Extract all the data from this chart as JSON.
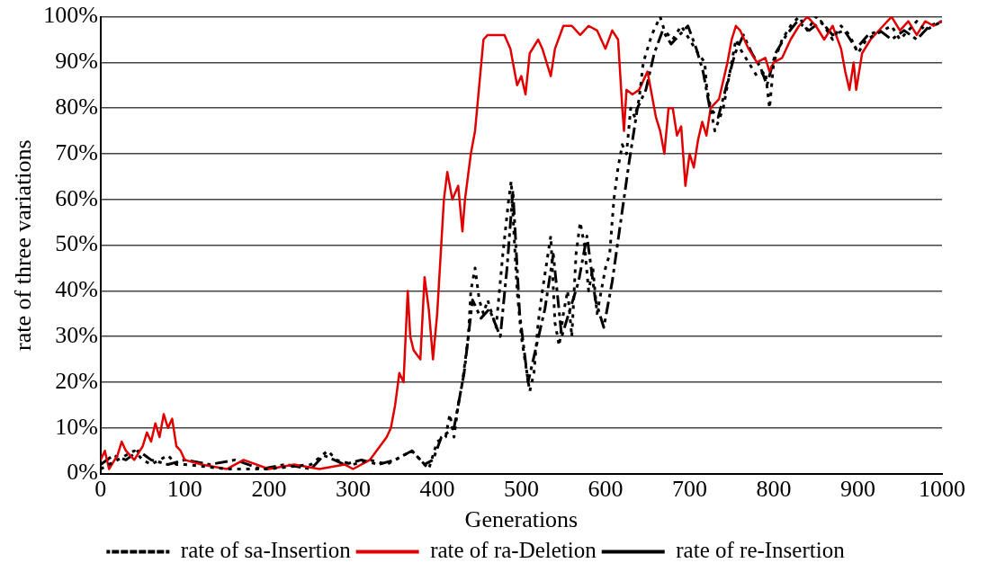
{
  "chart_data": {
    "type": "line",
    "xlabel": "Generations",
    "ylabel": "rate of three variations",
    "xlim": [
      0,
      1000
    ],
    "xticks": [
      0,
      100,
      200,
      300,
      400,
      500,
      600,
      700,
      800,
      900,
      1000
    ],
    "ylim": [
      0,
      100
    ],
    "yticks": [
      {
        "value": 0,
        "label": "0%"
      },
      {
        "value": 10,
        "label": "10%"
      },
      {
        "value": 20,
        "label": "20%"
      },
      {
        "value": 30,
        "label": "30%"
      },
      {
        "value": 40,
        "label": "40%"
      },
      {
        "value": 50,
        "label": "50%"
      },
      {
        "value": 60,
        "label": "60%"
      },
      {
        "value": 70,
        "label": "70%"
      },
      {
        "value": 80,
        "label": "80%"
      },
      {
        "value": 90,
        "label": "90%"
      },
      {
        "value": 100,
        "label": "100%"
      }
    ],
    "grid": "y",
    "legend": "bottom",
    "marker": "none",
    "series": [
      {
        "name": "rate of sa-Insertion",
        "color": "#000000",
        "line_style": "dotted",
        "x": [
          0,
          10,
          20,
          30,
          40,
          50,
          60,
          70,
          80,
          90,
          100,
          150,
          200,
          250,
          270,
          280,
          300,
          320,
          340,
          360,
          370,
          380,
          390,
          400,
          410,
          415,
          420,
          425,
          430,
          437,
          440,
          445,
          450,
          455,
          460,
          470,
          478,
          485,
          488,
          492,
          495,
          500,
          505,
          510,
          515,
          520,
          525,
          530,
          535,
          540,
          545,
          550,
          555,
          560,
          565,
          570,
          575,
          580,
          585,
          590,
          595,
          600,
          605,
          610,
          615,
          620,
          625,
          630,
          635,
          640,
          645,
          650,
          655,
          660,
          665,
          670,
          680,
          690,
          700,
          710,
          718,
          720,
          725,
          730,
          740,
          745,
          750,
          755,
          760,
          770,
          780,
          790,
          795,
          800,
          810,
          820,
          830,
          840,
          850,
          860,
          870,
          880,
          890,
          900,
          910,
          920,
          930,
          940,
          950,
          960,
          970,
          980,
          990,
          1000
        ],
        "values": [
          1,
          2,
          3,
          4,
          5,
          3,
          2,
          3,
          4,
          2,
          2,
          1,
          1,
          2,
          5,
          3,
          2,
          3,
          2,
          4,
          5,
          3,
          1,
          7,
          8,
          13,
          8,
          15,
          20,
          30,
          40,
          45,
          38,
          35,
          38,
          32,
          48,
          60,
          64,
          50,
          40,
          30,
          24,
          18,
          22,
          33,
          40,
          46,
          52,
          33,
          28,
          35,
          40,
          30,
          48,
          55,
          50,
          40,
          45,
          35,
          40,
          45,
          48,
          60,
          67,
          72,
          70,
          80,
          78,
          82,
          90,
          93,
          96,
          98,
          100,
          97,
          95,
          98,
          95,
          92,
          90,
          85,
          80,
          75,
          80,
          85,
          90,
          95,
          93,
          90,
          87,
          88,
          80,
          90,
          95,
          98,
          100,
          97,
          100,
          98,
          95,
          98,
          96,
          92,
          95,
          96,
          97,
          98,
          95,
          97,
          99,
          97,
          98,
          99
        ]
      },
      {
        "name": "rate of ra-Deletion",
        "color": "#e00000",
        "line_style": "solid",
        "x": [
          0,
          5,
          10,
          20,
          25,
          30,
          40,
          50,
          55,
          60,
          65,
          70,
          75,
          80,
          85,
          90,
          95,
          100,
          120,
          150,
          170,
          200,
          230,
          260,
          290,
          300,
          320,
          340,
          345,
          350,
          355,
          360,
          365,
          368,
          372,
          380,
          385,
          390,
          395,
          400,
          408,
          412,
          418,
          425,
          430,
          433,
          440,
          445,
          450,
          455,
          460,
          470,
          480,
          487,
          495,
          500,
          505,
          510,
          520,
          525,
          530,
          535,
          540,
          550,
          560,
          570,
          580,
          590,
          600,
          608,
          615,
          620,
          622,
          625,
          632,
          640,
          650,
          660,
          665,
          670,
          675,
          680,
          685,
          690,
          695,
          700,
          705,
          710,
          715,
          720,
          725,
          735,
          745,
          750,
          755,
          760,
          770,
          780,
          790,
          795,
          800,
          810,
          820,
          830,
          840,
          850,
          860,
          870,
          880,
          885,
          890,
          895,
          898,
          905,
          915,
          930,
          940,
          950,
          960,
          970,
          980,
          990,
          1000
        ],
        "values": [
          3,
          5,
          1,
          4,
          7,
          5,
          3,
          6,
          9,
          7,
          11,
          8,
          13,
          10,
          12,
          6,
          5,
          3,
          2,
          1,
          3,
          1,
          2,
          1,
          2,
          1,
          3,
          8,
          10,
          15,
          22,
          20,
          40,
          30,
          27,
          25,
          43,
          36,
          25,
          35,
          60,
          66,
          60,
          63,
          53,
          60,
          70,
          75,
          85,
          95,
          96,
          96,
          96,
          93,
          85,
          87,
          83,
          92,
          95,
          93,
          90,
          87,
          93,
          98,
          98,
          96,
          98,
          97,
          93,
          97,
          95,
          80,
          75,
          84,
          83,
          84,
          88,
          78,
          75,
          70,
          80,
          80,
          74,
          76,
          63,
          70,
          67,
          73,
          77,
          74,
          80,
          82,
          90,
          95,
          98,
          97,
          93,
          90,
          91,
          88,
          90,
          91,
          95,
          98,
          100,
          98,
          95,
          98,
          93,
          88,
          84,
          90,
          84,
          92,
          95,
          98,
          100,
          97,
          99,
          96,
          99,
          98,
          99
        ]
      },
      {
        "name": "rate of re-Insertion",
        "color": "#000000",
        "line_style": "dashed",
        "x": [
          0,
          15,
          30,
          45,
          60,
          80,
          100,
          130,
          160,
          190,
          220,
          250,
          265,
          290,
          310,
          330,
          350,
          370,
          385,
          395,
          405,
          420,
          432,
          442,
          452,
          462,
          475,
          483,
          490,
          498,
          508,
          518,
          528,
          538,
          548,
          558,
          568,
          578,
          588,
          598,
          608,
          618,
          628,
          638,
          648,
          658,
          668,
          678,
          688,
          698,
          708,
          716,
          724,
          734,
          744,
          754,
          764,
          774,
          784,
          792,
          802,
          815,
          828,
          842,
          856,
          870,
          884,
          898,
          912,
          926,
          940,
          955,
          970,
          985,
          1000
        ],
        "values": [
          2,
          4,
          3,
          5,
          3,
          2,
          3,
          2,
          3,
          1,
          2,
          1,
          4,
          2,
          3,
          2,
          3,
          5,
          2,
          3,
          8,
          10,
          22,
          38,
          34,
          36,
          30,
          45,
          62,
          35,
          20,
          28,
          36,
          48,
          30,
          36,
          42,
          52,
          38,
          32,
          42,
          55,
          68,
          80,
          84,
          92,
          97,
          94,
          96,
          98,
          93,
          88,
          80,
          78,
          85,
          92,
          96,
          92,
          89,
          85,
          92,
          96,
          99,
          97,
          99,
          96,
          97,
          93,
          96,
          97,
          95,
          97,
          95,
          98,
          99
        ]
      }
    ]
  }
}
